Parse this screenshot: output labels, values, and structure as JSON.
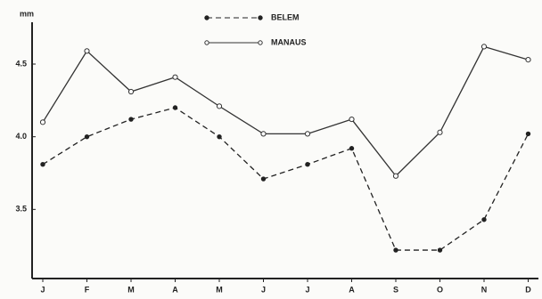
{
  "chart_data": {
    "type": "line",
    "y_label": "mm",
    "categories": [
      "J",
      "F",
      "M",
      "A",
      "M",
      "J",
      "J",
      "A",
      "S",
      "O",
      "N",
      "D"
    ],
    "series": [
      {
        "name": "BELEM",
        "color": "#222222",
        "dash": true,
        "marker": "filled",
        "values": [
          3.81,
          4.0,
          4.12,
          4.2,
          4.0,
          3.71,
          3.81,
          3.92,
          3.22,
          3.22,
          3.43,
          4.02
        ]
      },
      {
        "name": "MANAUS",
        "color": "#333333",
        "dash": false,
        "marker": "open",
        "values": [
          4.1,
          4.59,
          4.31,
          4.41,
          4.21,
          4.02,
          4.02,
          4.12,
          3.73,
          4.03,
          4.62,
          4.53
        ]
      }
    ],
    "ylim": [
      3.0,
      4.8
    ],
    "yticks": [
      {
        "value": 3.5,
        "label": "3.5"
      },
      {
        "value": 4.0,
        "label": "4.0"
      },
      {
        "value": 4.5,
        "label": "4.5"
      }
    ],
    "legend": "top"
  }
}
